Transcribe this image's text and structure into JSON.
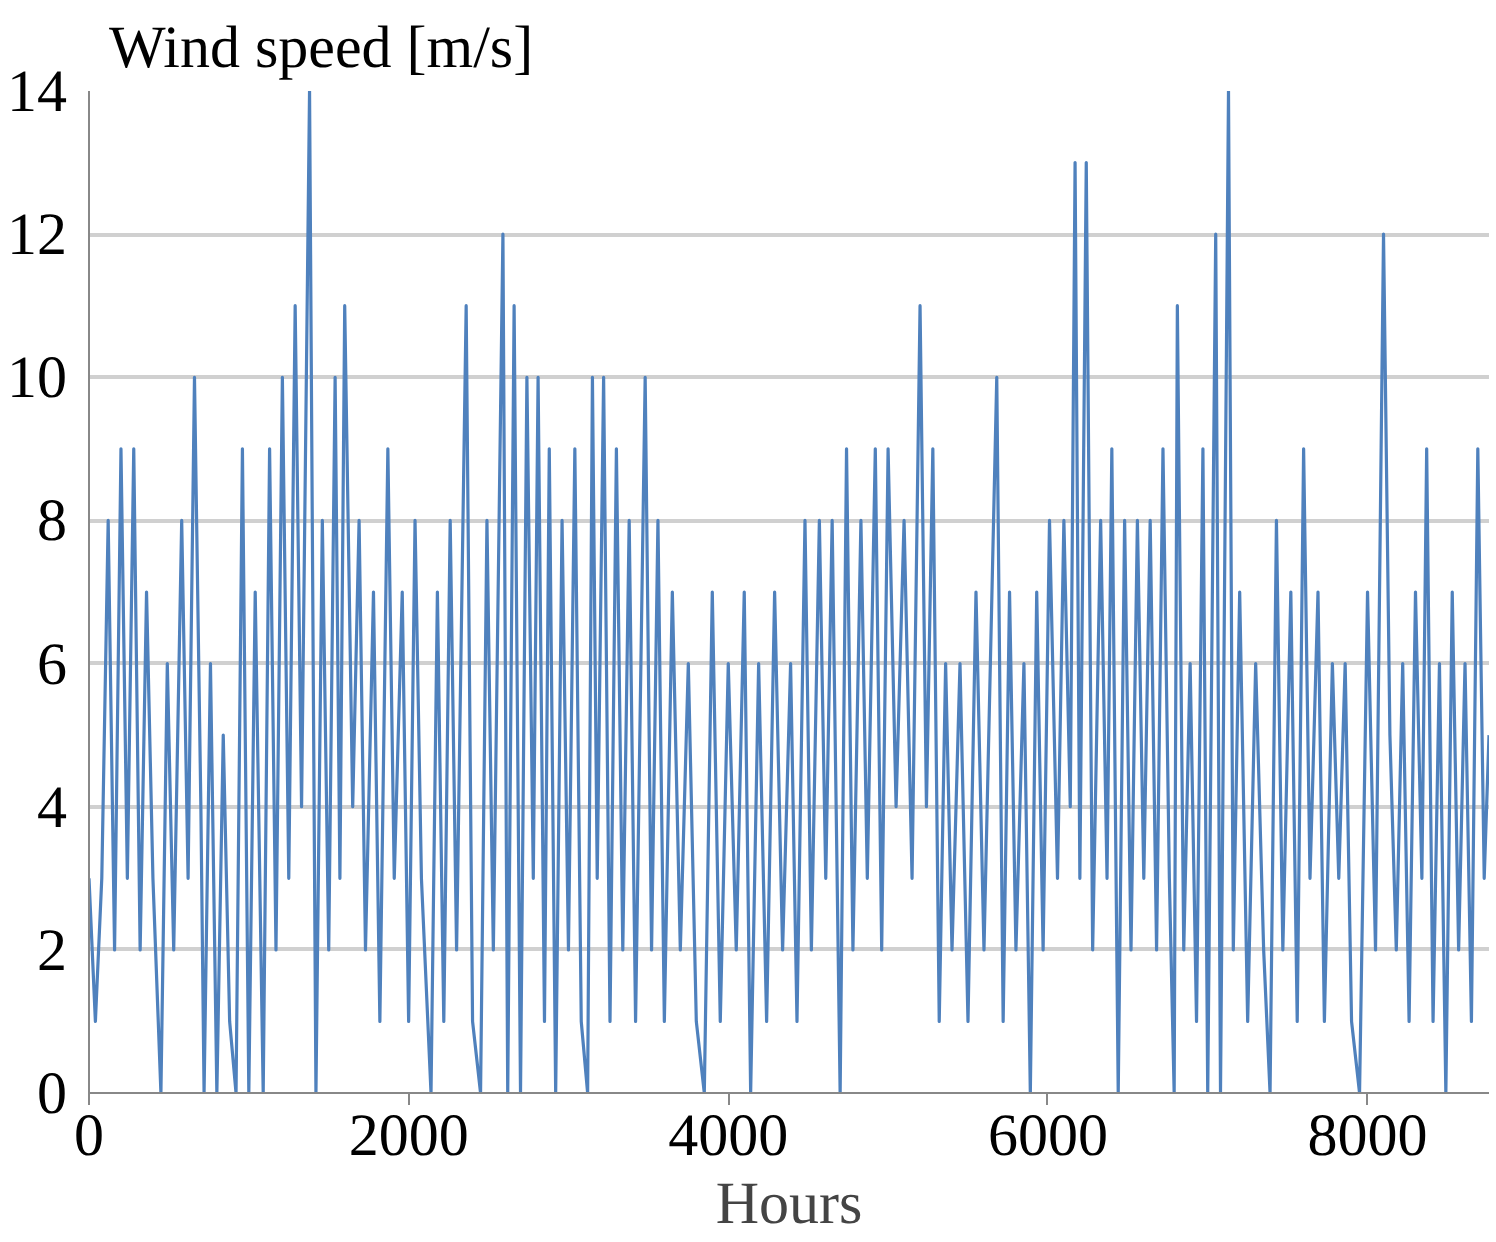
{
  "chart_data": {
    "type": "line",
    "ylabel": "Wind speed [m/s]",
    "xlabel": "Hours",
    "xlim": [
      0,
      8760
    ],
    "ylim": [
      0,
      14
    ],
    "xticks": [
      0,
      2000,
      4000,
      6000,
      8000
    ],
    "yticks": [
      0,
      2,
      4,
      6,
      8,
      10,
      12,
      14
    ],
    "grid": "y",
    "marker": "none",
    "line_style": "solid",
    "series": [
      {
        "color": "#4f81bd",
        "x": [
          0,
          40,
          80,
          120,
          160,
          200,
          240,
          280,
          320,
          360,
          400,
          450,
          490,
          530,
          580,
          620,
          660,
          700,
          720,
          760,
          800,
          840,
          880,
          920,
          960,
          1000,
          1040,
          1090,
          1130,
          1170,
          1210,
          1250,
          1290,
          1330,
          1380,
          1420,
          1460,
          1500,
          1540,
          1570,
          1600,
          1650,
          1690,
          1730,
          1780,
          1820,
          1870,
          1910,
          1960,
          2000,
          2040,
          2080,
          2140,
          2180,
          2220,
          2260,
          2300,
          2360,
          2400,
          2450,
          2490,
          2530,
          2590,
          2620,
          2660,
          2700,
          2740,
          2780,
          2810,
          2850,
          2880,
          2920,
          2960,
          3000,
          3040,
          3080,
          3120,
          3150,
          3180,
          3220,
          3260,
          3300,
          3340,
          3380,
          3420,
          3480,
          3520,
          3560,
          3600,
          3650,
          3700,
          3750,
          3800,
          3850,
          3900,
          3950,
          4000,
          4050,
          4100,
          4140,
          4190,
          4240,
          4290,
          4340,
          4390,
          4430,
          4480,
          4520,
          4570,
          4610,
          4650,
          4700,
          4740,
          4780,
          4830,
          4870,
          4920,
          4960,
          5000,
          5050,
          5100,
          5150,
          5200,
          5240,
          5280,
          5320,
          5360,
          5400,
          5450,
          5500,
          5550,
          5600,
          5640,
          5680,
          5720,
          5760,
          5800,
          5850,
          5890,
          5930,
          5970,
          6010,
          6060,
          6100,
          6140,
          6170,
          6200,
          6240,
          6280,
          6330,
          6370,
          6400,
          6440,
          6480,
          6520,
          6560,
          6600,
          6640,
          6680,
          6720,
          6760,
          6790,
          6810,
          6850,
          6890,
          6930,
          6970,
          7000,
          7050,
          7080,
          7130,
          7160,
          7200,
          7250,
          7300,
          7350,
          7390,
          7430,
          7470,
          7520,
          7560,
          7600,
          7640,
          7690,
          7730,
          7780,
          7820,
          7860,
          7900,
          7950,
          8000,
          8050,
          8100,
          8140,
          8180,
          8220,
          8260,
          8300,
          8340,
          8370,
          8410,
          8450,
          8490,
          8530,
          8570,
          8610,
          8650,
          8690,
          8730,
          8760
        ],
        "values": [
          3,
          1,
          3,
          8,
          2,
          9,
          3,
          9,
          2,
          7,
          3,
          0,
          6,
          2,
          8,
          3,
          10,
          4,
          0,
          6,
          0,
          5,
          1,
          0,
          9,
          0,
          7,
          0,
          9,
          2,
          10,
          3,
          11,
          4,
          14,
          0,
          8,
          2,
          10,
          3,
          11,
          4,
          8,
          2,
          7,
          1,
          9,
          3,
          7,
          1,
          8,
          3,
          0,
          7,
          1,
          8,
          2,
          11,
          1,
          0,
          8,
          2,
          12,
          0,
          11,
          0,
          10,
          3,
          10,
          1,
          9,
          0,
          8,
          2,
          9,
          1,
          0,
          10,
          3,
          10,
          1,
          9,
          2,
          8,
          1,
          10,
          2,
          8,
          1,
          7,
          2,
          6,
          1,
          0,
          7,
          1,
          6,
          2,
          7,
          0,
          6,
          1,
          7,
          2,
          6,
          1,
          8,
          2,
          8,
          3,
          8,
          0,
          9,
          2,
          8,
          3,
          9,
          2,
          9,
          4,
          8,
          3,
          11,
          4,
          9,
          1,
          6,
          2,
          6,
          1,
          7,
          2,
          6,
          10,
          1,
          7,
          2,
          6,
          0,
          7,
          2,
          8,
          3,
          8,
          4,
          13,
          3,
          13,
          2,
          8,
          3,
          9,
          0,
          8,
          2,
          8,
          3,
          8,
          2,
          9,
          3,
          0,
          11,
          2,
          6,
          1,
          9,
          0,
          12,
          0,
          14,
          2,
          7,
          1,
          6,
          2,
          0,
          8,
          2,
          7,
          1,
          9,
          3,
          7,
          1,
          6,
          3,
          6,
          1,
          0,
          7,
          2,
          12,
          5,
          2,
          6,
          1,
          7,
          3,
          9,
          1,
          6,
          0,
          7,
          2,
          6,
          1,
          9,
          3,
          5
        ]
      }
    ]
  }
}
